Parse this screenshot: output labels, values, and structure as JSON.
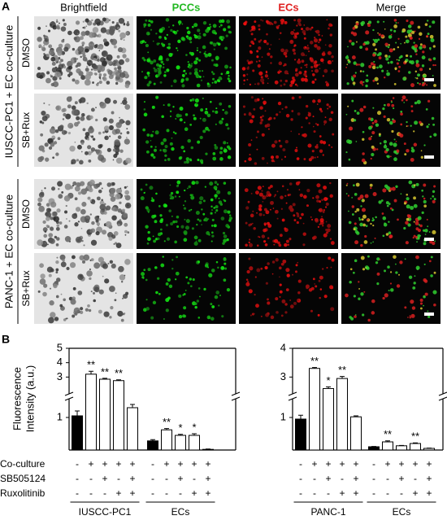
{
  "panel_a": {
    "label": "A",
    "columns": [
      "Brightfield",
      "PCCs",
      "ECs",
      "Merge"
    ],
    "groups": [
      {
        "label": "IUSCC-PC1 + EC co-culture",
        "rows": [
          "DMSO",
          "SB+Rux"
        ]
      },
      {
        "label": "PANC-1 + EC co-culture",
        "rows": [
          "DMSO",
          "SB+Rux"
        ]
      }
    ]
  },
  "panel_b": {
    "label": "B",
    "y_label": [
      "Fluorescence",
      "Intensity (a.u.)"
    ]
  },
  "treatments": [
    {
      "name": "Co-culture",
      "signs": [
        "-",
        "+",
        "+",
        "+",
        "+"
      ]
    },
    {
      "name": "SB505124",
      "signs": [
        "-",
        "-",
        "+",
        "-",
        "+"
      ]
    },
    {
      "name": "Ruxolitinib",
      "signs": [
        "-",
        "-",
        "-",
        "+",
        "+"
      ]
    }
  ],
  "chart_data": [
    {
      "type": "bar",
      "colors": [
        "#000000",
        "#ffffff",
        "#ffffff",
        "#ffffff",
        "#ffffff"
      ],
      "axis_segments": [
        {
          "ylim": [
            0,
            1.5
          ],
          "yticks": [
            1
          ]
        },
        {
          "ylim": [
            2,
            5
          ],
          "yticks": [
            3,
            4,
            5
          ]
        }
      ],
      "groups": [
        {
          "name": "IUSCC-PC1",
          "values": [
            1.05,
            3.2,
            2.85,
            2.75,
            1.3
          ],
          "errors": [
            0.15,
            0.2,
            0.06,
            0.06,
            0.1
          ],
          "significance": [
            null,
            "**",
            "**",
            "**",
            null
          ]
        },
        {
          "name": "ECs",
          "values": [
            0.28,
            0.62,
            0.45,
            0.45,
            0.02
          ],
          "errors": [
            0.04,
            0.04,
            0.03,
            0.05,
            0.01
          ],
          "significance": [
            null,
            "**",
            "*",
            "*",
            null
          ]
        }
      ]
    },
    {
      "type": "bar",
      "colors": [
        "#000000",
        "#ffffff",
        "#ffffff",
        "#ffffff",
        "#ffffff"
      ],
      "axis_segments": [
        {
          "ylim": [
            0,
            1.5
          ],
          "yticks": [
            1
          ]
        },
        {
          "ylim": [
            2.5,
            4
          ],
          "yticks": [
            3,
            4
          ]
        }
      ],
      "groups": [
        {
          "name": "PANC-1",
          "values": [
            0.95,
            3.3,
            2.6,
            2.95,
            1.02
          ],
          "errors": [
            0.12,
            0.03,
            0.06,
            0.07,
            0.03
          ],
          "significance": [
            null,
            "**",
            "*",
            "**",
            null
          ]
        },
        {
          "name": "ECs",
          "values": [
            0.1,
            0.25,
            0.13,
            0.2,
            0.05
          ],
          "errors": [
            0.01,
            0.03,
            0.01,
            0.02,
            0.01
          ],
          "significance": [
            null,
            "**",
            null,
            "**",
            null
          ]
        }
      ]
    }
  ]
}
